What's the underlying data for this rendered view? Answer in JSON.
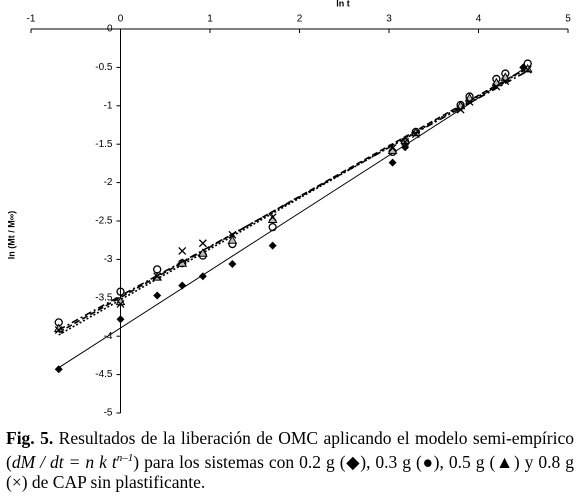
{
  "chart_data": {
    "type": "scatter",
    "title": "ln t",
    "y_label": "ln (Mt / M∞)",
    "xlim": [
      -1,
      5
    ],
    "xticks": [
      -1,
      0,
      1,
      2,
      3,
      4,
      5
    ],
    "ylim": [
      -5,
      0
    ],
    "yticks": [
      -5,
      -4.5,
      -4,
      -3.5,
      -3,
      -2.5,
      -2,
      -1.5,
      -1,
      -0.5,
      0
    ],
    "trendline": true,
    "series": [
      {
        "marker": "diamond",
        "color": "#000000",
        "line": "solid",
        "x": [
          -0.69,
          0,
          0.41,
          0.69,
          0.92,
          1.25,
          1.7,
          3.04,
          3.18,
          3.3,
          3.8,
          3.9,
          4.2,
          4.3,
          4.5
        ],
        "values": [
          -4.43,
          -3.78,
          -3.47,
          -3.34,
          -3.22,
          -3.06,
          -2.82,
          -1.74,
          -1.54,
          -1.35,
          -1.02,
          -0.92,
          -0.72,
          -0.65,
          -0.5
        ]
      },
      {
        "marker": "circle",
        "color": "#000000",
        "line": "dashed",
        "x": [
          -0.69,
          0,
          0.41,
          0.69,
          0.92,
          1.25,
          1.7,
          3.04,
          3.18,
          3.3,
          3.8,
          3.9,
          4.2,
          4.3,
          4.55
        ],
        "values": [
          -3.82,
          -3.42,
          -3.13,
          -3.05,
          -2.95,
          -2.8,
          -2.58,
          -1.6,
          -1.47,
          -1.34,
          -0.99,
          -0.88,
          -0.65,
          -0.58,
          -0.45
        ]
      },
      {
        "marker": "triangle",
        "color": "#000000",
        "line": "dotted",
        "x": [
          -0.69,
          0,
          0.41,
          0.69,
          0.92,
          1.25,
          1.7,
          3.04,
          3.18,
          3.3,
          3.8,
          3.9,
          4.2,
          4.3,
          4.55
        ],
        "values": [
          -3.9,
          -3.55,
          -3.23,
          -3.05,
          -2.92,
          -2.75,
          -2.48,
          -1.58,
          -1.45,
          -1.35,
          -1.0,
          -0.9,
          -0.7,
          -0.63,
          -0.52
        ]
      },
      {
        "marker": "cross",
        "color": "#000000",
        "line": "dashdot",
        "x": [
          -0.69,
          0,
          0.41,
          0.69,
          0.92,
          1.25,
          1.7,
          3.04,
          3.18,
          3.3,
          3.8,
          3.9,
          4.2,
          4.3,
          4.55
        ],
        "values": [
          -3.92,
          -3.58,
          -3.22,
          -2.89,
          -2.79,
          -2.68,
          -2.45,
          -1.55,
          -1.47,
          -1.37,
          -1.05,
          -0.95,
          -0.75,
          -0.68,
          -0.53
        ]
      }
    ]
  },
  "caption": {
    "label": "Fig. 5.",
    "text1": " Resultados de la liberación de OMC aplicando el modelo semi-empírico (",
    "formula": "dM / dt = n k t",
    "exponent": "n–1",
    "text2": ") para los sistemas con 0.2 g (◆), 0.3 g (●), 0.5 g (▲) y 0.8 g (×) de CAP sin plastificante."
  }
}
